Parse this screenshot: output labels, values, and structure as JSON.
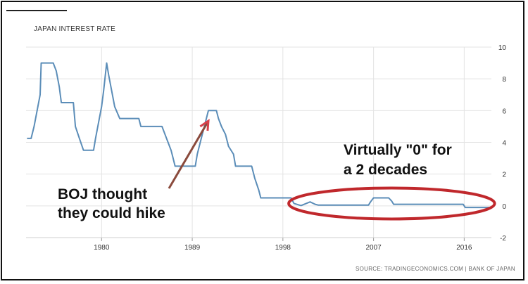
{
  "chart_data": {
    "type": "line",
    "title": "JAPAN INTEREST RATE",
    "source": "SOURCE: TRADINGECONOMICS.COM | BANK OF JAPAN",
    "xlabel": "",
    "ylabel": "",
    "xlim": [
      1972.5,
      2018.7
    ],
    "ylim": [
      -2,
      10
    ],
    "x_ticks": [
      {
        "value": 1980,
        "label": "1980"
      },
      {
        "value": 1989,
        "label": "1989"
      },
      {
        "value": 1998,
        "label": "1998"
      },
      {
        "value": 2007,
        "label": "2007"
      },
      {
        "value": 2016,
        "label": "2016"
      }
    ],
    "y_ticks": [
      {
        "value": 10,
        "label": "10"
      },
      {
        "value": 8,
        "label": "8"
      },
      {
        "value": 6,
        "label": "6"
      },
      {
        "value": 4,
        "label": "4"
      },
      {
        "value": 2,
        "label": "2"
      },
      {
        "value": 0,
        "label": "0"
      },
      {
        "value": -2,
        "label": "-2"
      }
    ],
    "grid": true,
    "line_color": "#5b8db8",
    "series": [
      {
        "values_xy": [
          [
            1972.6,
            4.25
          ],
          [
            1973.0,
            4.25
          ],
          [
            1973.3,
            5.0
          ],
          [
            1973.6,
            6.0
          ],
          [
            1973.9,
            7.0
          ],
          [
            1974.0,
            9.0
          ],
          [
            1975.2,
            9.0
          ],
          [
            1975.5,
            8.5
          ],
          [
            1975.8,
            7.5
          ],
          [
            1976.0,
            6.5
          ],
          [
            1977.2,
            6.5
          ],
          [
            1977.4,
            5.0
          ],
          [
            1977.8,
            4.25
          ],
          [
            1978.2,
            3.5
          ],
          [
            1979.2,
            3.5
          ],
          [
            1979.4,
            4.25
          ],
          [
            1979.7,
            5.25
          ],
          [
            1980.0,
            6.25
          ],
          [
            1980.2,
            7.25
          ],
          [
            1980.5,
            9.0
          ],
          [
            1980.7,
            8.25
          ],
          [
            1981.0,
            7.25
          ],
          [
            1981.3,
            6.25
          ],
          [
            1981.8,
            5.5
          ],
          [
            1983.7,
            5.5
          ],
          [
            1983.9,
            5.0
          ],
          [
            1986.0,
            5.0
          ],
          [
            1986.3,
            4.5
          ],
          [
            1986.6,
            4.0
          ],
          [
            1986.9,
            3.5
          ],
          [
            1987.1,
            3.0
          ],
          [
            1987.3,
            2.5
          ],
          [
            1989.3,
            2.5
          ],
          [
            1989.5,
            3.25
          ],
          [
            1989.9,
            4.25
          ],
          [
            1990.3,
            5.25
          ],
          [
            1990.6,
            6.0
          ],
          [
            1991.4,
            6.0
          ],
          [
            1991.6,
            5.5
          ],
          [
            1991.9,
            5.0
          ],
          [
            1992.3,
            4.5
          ],
          [
            1992.6,
            3.75
          ],
          [
            1993.1,
            3.25
          ],
          [
            1993.3,
            2.5
          ],
          [
            1994.9,
            2.5
          ],
          [
            1995.2,
            1.75
          ],
          [
            1995.6,
            1.0
          ],
          [
            1995.8,
            0.5
          ],
          [
            1998.8,
            0.5
          ],
          [
            1999.1,
            0.15
          ],
          [
            1999.8,
            0.02
          ],
          [
            2000.7,
            0.25
          ],
          [
            2001.2,
            0.1
          ],
          [
            2001.5,
            0.05
          ],
          [
            2006.5,
            0.05
          ],
          [
            2006.7,
            0.25
          ],
          [
            2007.0,
            0.5
          ],
          [
            2008.5,
            0.5
          ],
          [
            2008.8,
            0.3
          ],
          [
            2009.0,
            0.1
          ],
          [
            2015.9,
            0.1
          ],
          [
            2016.1,
            -0.1
          ],
          [
            2018.5,
            -0.1
          ]
        ]
      }
    ],
    "annotations": [
      {
        "lines": [
          "Virtually \"0\" for",
          "a 2 decades"
        ],
        "color": "#111111"
      },
      {
        "lines": [
          "BOJ thought",
          "they could hike"
        ],
        "color": "#111111"
      }
    ],
    "highlight_ellipse_color": "#c0282c",
    "arrow_color": "#8a4a3c"
  }
}
